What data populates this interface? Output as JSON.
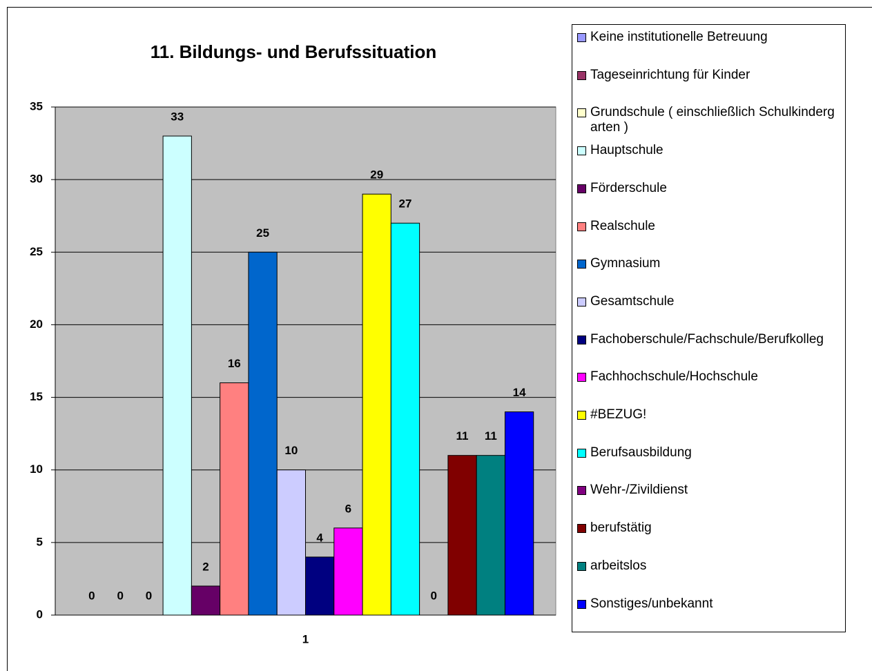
{
  "chart_data": {
    "type": "bar",
    "title": "11. Bildungs- und Berufssituation",
    "categories": [
      "1"
    ],
    "series": [
      {
        "name": "Keine institutionelle Betreuung",
        "color": "#9999ff",
        "values": [
          0
        ]
      },
      {
        "name": "Tageseinrichtung für Kinder",
        "color": "#993366",
        "values": [
          0
        ]
      },
      {
        "name": "Grundschule ( einschließlich Schulkindergarten )",
        "color": "#ffffcc",
        "values": [
          0
        ]
      },
      {
        "name": "Hauptschule",
        "color": "#ccffff",
        "values": [
          33
        ]
      },
      {
        "name": "Förderschule",
        "color": "#660066",
        "values": [
          2
        ]
      },
      {
        "name": "Realschule",
        "color": "#ff8080",
        "values": [
          16
        ]
      },
      {
        "name": "Gymnasium",
        "color": "#0066cc",
        "values": [
          25
        ]
      },
      {
        "name": "Gesamtschule",
        "color": "#ccccff",
        "values": [
          10
        ]
      },
      {
        "name": "Fachoberschule/Fachschule/Berufkolleg",
        "color": "#000080",
        "values": [
          4
        ]
      },
      {
        "name": "Fachhochschule/Hochschule",
        "color": "#ff00ff",
        "values": [
          6
        ]
      },
      {
        "name": "#BEZUG!",
        "color": "#ffff00",
        "values": [
          29
        ]
      },
      {
        "name": "Berufsausbildung",
        "color": "#00ffff",
        "values": [
          27
        ]
      },
      {
        "name": "Wehr-/Zivildienst",
        "color": "#800080",
        "values": [
          0
        ]
      },
      {
        "name": "berufstätig",
        "color": "#800000",
        "values": [
          11
        ]
      },
      {
        "name": "arbeitslos",
        "color": "#008080",
        "values": [
          11
        ]
      },
      {
        "name": "Sonstiges/unbekannt",
        "color": "#0000ff",
        "values": [
          14
        ]
      }
    ],
    "ylim": [
      0,
      35
    ],
    "yticks": [
      0,
      5,
      10,
      15,
      20,
      25,
      30,
      35
    ],
    "grid": true,
    "legend": "right"
  }
}
